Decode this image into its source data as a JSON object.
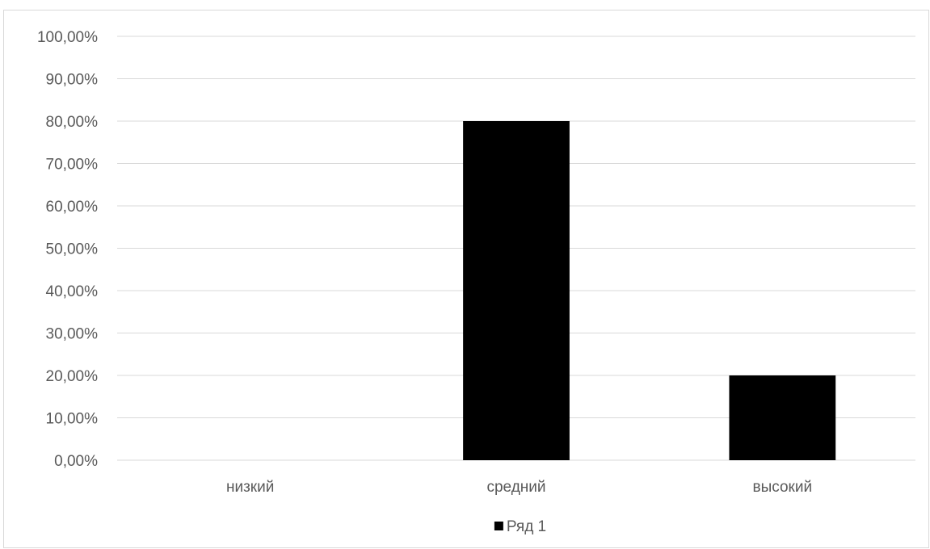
{
  "chart_data": {
    "type": "bar",
    "categories": [
      "низкий",
      "средний",
      "высокий"
    ],
    "series": [
      {
        "name": "Ряд 1",
        "values": [
          0,
          80,
          20
        ],
        "color": "#000000"
      }
    ],
    "y_ticks": [
      "0,00%",
      "10,00%",
      "20,00%",
      "30,00%",
      "40,00%",
      "50,00%",
      "60,00%",
      "70,00%",
      "80,00%",
      "90,00%",
      "100,00%"
    ],
    "ylim": [
      0,
      100
    ],
    "y_unit": "%",
    "grid": true,
    "legend_position": "bottom",
    "title": "",
    "xlabel": "",
    "ylabel": "",
    "colors": {
      "gridline": "#d9d9d9",
      "text": "#595959",
      "frame": "#d9d9d9"
    }
  }
}
